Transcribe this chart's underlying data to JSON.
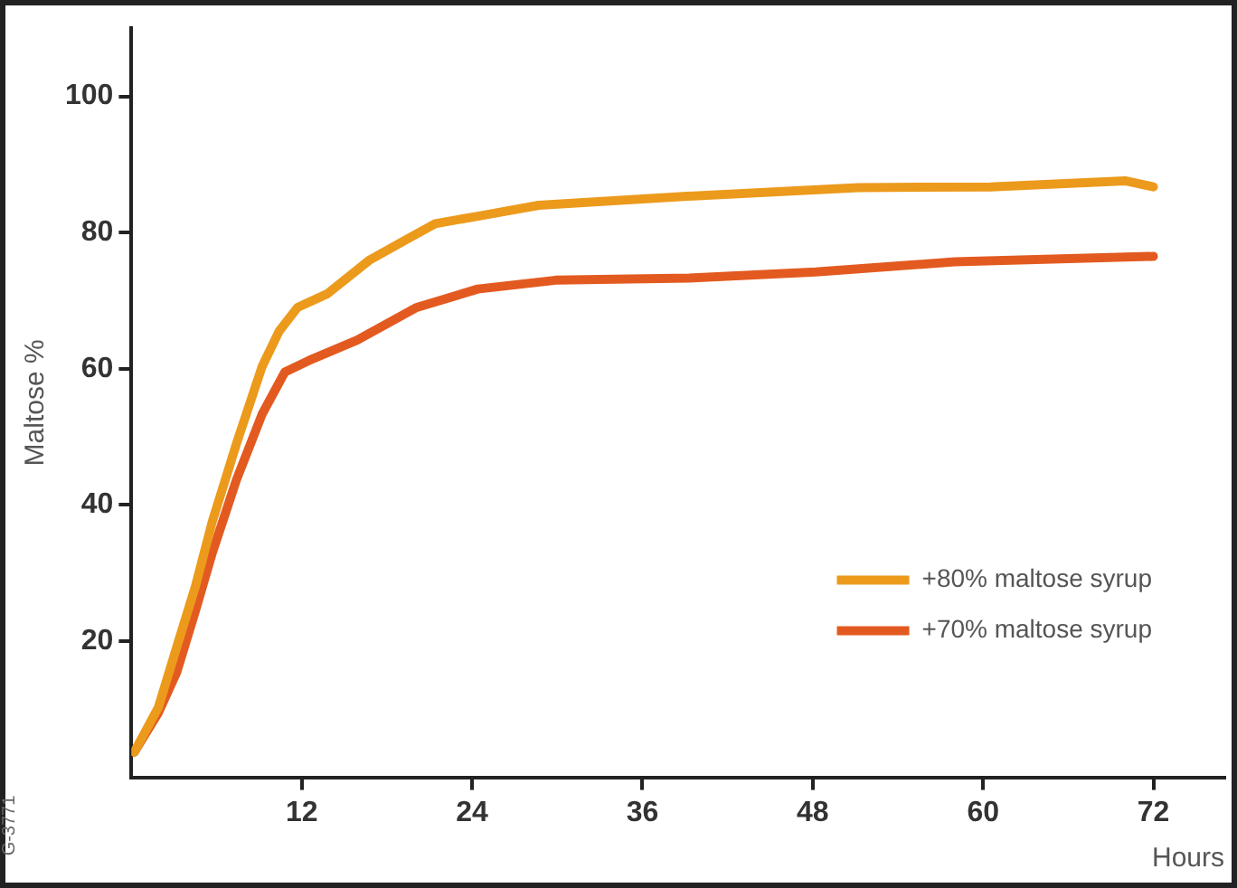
{
  "chart_data": {
    "type": "line",
    "xlabel": "Hours",
    "ylabel": "Maltose %",
    "annotations": [
      "G-3771"
    ],
    "xlim": [
      0,
      77
    ],
    "xticks": [
      12,
      24,
      36,
      48,
      60,
      72
    ],
    "ylim": [
      0,
      110
    ],
    "yticks": [
      20,
      40,
      60,
      80,
      100
    ],
    "grid": false,
    "legend": "bottom right",
    "marker": "none",
    "line_style": "solid",
    "series": [
      {
        "name": "+80% maltose syrup",
        "color": "#ec9a1c",
        "x": [
          0.2,
          1.9,
          3.2,
          4.5,
          5.7,
          7.4,
          9.2,
          10.4,
          11.7,
          13.8,
          16.8,
          19.4,
          21.4,
          24.4,
          28.7,
          38.9,
          51.2,
          60.5,
          70,
          72
        ],
        "values": [
          3.7,
          10.3,
          19.2,
          28,
          37.6,
          49,
          60.3,
          65.5,
          69,
          71,
          76,
          79,
          81.3,
          82.4,
          84,
          85.3,
          86.6,
          86.7,
          87.6,
          86.7
        ]
      },
      {
        "name": "+70% maltose syrup",
        "color": "#e35a20",
        "x": [
          0.2,
          1.9,
          3.2,
          4.5,
          5.7,
          7.4,
          9.2,
          10.8,
          12.5,
          15.9,
          20.1,
          24.4,
          29.9,
          39.3,
          48.2,
          58,
          72
        ],
        "values": [
          3.7,
          9.5,
          15.5,
          24.4,
          33,
          43.7,
          53.3,
          59.5,
          61.2,
          64.2,
          69,
          71.7,
          73,
          73.3,
          74.2,
          75.7,
          76.5
        ]
      }
    ]
  }
}
